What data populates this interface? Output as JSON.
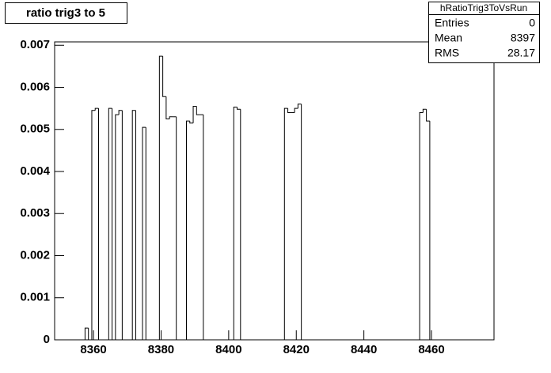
{
  "chart_data": {
    "type": "histogram",
    "title": "ratio trig3 to 5",
    "bins": [
      8348.5,
      8349.5,
      8350.5,
      8351.5,
      8352.5,
      8353.5,
      8354.5,
      8355.5,
      8356.5,
      8357.5,
      8358.5,
      8359.5,
      8360.5,
      8361.5,
      8362.5,
      8363.5,
      8364.5,
      8365.5,
      8366.5,
      8367.5,
      8368.5,
      8369.5,
      8370.5,
      8371.5,
      8372.5,
      8373.5,
      8374.5,
      8375.5,
      8376.5,
      8377.5,
      8378.5,
      8379.5,
      8380.5,
      8381.5,
      8382.5,
      8383.5,
      8384.5,
      8385.5,
      8386.5,
      8387.5,
      8388.5,
      8389.5,
      8390.5,
      8391.5,
      8392.5,
      8393.5,
      8394.5,
      8395.5,
      8396.5,
      8397.5,
      8398.5,
      8399.5,
      8400.5,
      8401.5,
      8402.5,
      8403.5,
      8404.5,
      8405.5,
      8406.5,
      8407.5,
      8408.5,
      8409.5,
      8410.5,
      8411.5,
      8412.5,
      8413.5,
      8414.5,
      8415.5,
      8416.5,
      8417.5,
      8418.5,
      8419.5,
      8420.5,
      8421.5,
      8422.5,
      8423.5,
      8424.5,
      8425.5,
      8426.5,
      8427.5,
      8428.5,
      8429.5,
      8430.5,
      8431.5,
      8432.5,
      8433.5,
      8434.5,
      8435.5,
      8436.5,
      8437.5,
      8438.5,
      8439.5,
      8440.5,
      8441.5,
      8442.5,
      8443.5,
      8444.5,
      8445.5,
      8446.5,
      8447.5,
      8448.5,
      8449.5,
      8450.5,
      8451.5,
      8452.5,
      8453.5,
      8454.5,
      8455.5,
      8456.5,
      8457.5,
      8458.5,
      8459.5,
      8460.5,
      8461.5,
      8462.5,
      8463.5,
      8464.5,
      8465.5,
      8466.5,
      8467.5,
      8468.5,
      8469.5,
      8470.5,
      8471.5,
      8472.5,
      8473.5,
      8474.5,
      8475.5,
      8476.5,
      8477.5,
      8478.5
    ],
    "values": [
      0,
      0,
      0,
      0,
      0,
      0,
      0,
      0,
      0,
      0.00028,
      0,
      0.00545,
      0.0055,
      0,
      0,
      0,
      0.0055,
      0,
      0.00535,
      0.00545,
      0,
      0,
      0,
      0.00545,
      0,
      0,
      0.00505,
      0,
      0,
      0,
      0,
      0.00674,
      0.00578,
      0.00525,
      0.0053,
      0.0053,
      0,
      0,
      0,
      0.0052,
      0.00515,
      0.00555,
      0.00535,
      0.00535,
      0,
      0,
      0,
      0,
      0,
      0,
      0,
      0,
      0,
      0.00553,
      0.00548,
      0,
      0,
      0,
      0,
      0,
      0,
      0,
      0,
      0,
      0,
      0,
      0,
      0,
      0.0055,
      0.0054,
      0.0054,
      0.0055,
      0.0056,
      0,
      0,
      0,
      0,
      0,
      0,
      0,
      0,
      0,
      0,
      0,
      0,
      0,
      0,
      0,
      0,
      0,
      0,
      0,
      0,
      0,
      0,
      0,
      0,
      0,
      0,
      0,
      0,
      0,
      0,
      0,
      0,
      0,
      0,
      0,
      0.0054,
      0.00548,
      0.0052,
      0,
      0,
      0,
      0,
      0,
      0,
      0,
      0,
      0,
      0,
      0,
      0,
      0,
      0,
      0,
      0,
      0,
      0,
      0
    ],
    "color": "#000000",
    "xlim": [
      8348.5,
      8478.5
    ],
    "xticks": [
      8360,
      8380,
      8400,
      8420,
      8440,
      8460
    ],
    "ylim": [
      0,
      0.00708
    ],
    "yticks": [
      0,
      0.001,
      0.002,
      0.003,
      0.004,
      0.005,
      0.006,
      0.007
    ],
    "stats": {
      "title": "hRatioTrig3ToVsRun",
      "rows": [
        {
          "label": "Entries",
          "value": 0
        },
        {
          "label": "Mean",
          "value": 8397
        },
        {
          "label": "RMS",
          "value": 28.17
        }
      ]
    }
  }
}
